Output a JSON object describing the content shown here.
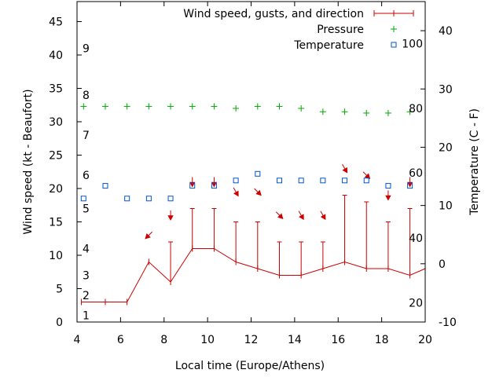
{
  "chart_data": {
    "type": "line",
    "xlabel": "Local time (Europe/Athens)",
    "ylabel_left": "Wind speed (kt - Beaufort)",
    "ylabel_right": "Temperature (C - F)",
    "x_range": [
      4,
      20
    ],
    "y_left_range": [
      0,
      48
    ],
    "y_right_range": [
      -10,
      45
    ],
    "x_ticks": [
      "4",
      "6",
      "8",
      "10",
      "12",
      "14",
      "16",
      "18",
      "20"
    ],
    "y_left_ticks": [
      "0",
      "5",
      "10",
      "15",
      "20",
      "25",
      "30",
      "35",
      "40",
      "45"
    ],
    "y_right_ticks": [
      "-10",
      "0",
      "10",
      "20",
      "30",
      "40"
    ],
    "beaufort_labels": [
      {
        "label": "1",
        "y": 1
      },
      {
        "label": "2",
        "y": 4
      },
      {
        "label": "3",
        "y": 7
      },
      {
        "label": "4",
        "y": 11
      },
      {
        "label": "5",
        "y": 17
      },
      {
        "label": "6",
        "y": 22
      },
      {
        "label": "7",
        "y": 28
      },
      {
        "label": "8",
        "y": 34
      },
      {
        "label": "9",
        "y": 41
      }
    ],
    "fahrenheit_labels": [
      {
        "label": "20",
        "c": -6.7
      },
      {
        "label": "40",
        "c": 4.4
      },
      {
        "label": "60",
        "c": 15.6
      },
      {
        "label": "80",
        "c": 26.7
      },
      {
        "label": "100",
        "c": 37.8
      }
    ],
    "legend": {
      "wind": "Wind speed, gusts, and direction",
      "pressure": "Pressure",
      "temperature": "Temperature"
    },
    "colors": {
      "wind": "#cc0000",
      "pressure": "#00aa00",
      "temperature": "#0055cc"
    },
    "wind": {
      "x": [
        4.2,
        5.3,
        6.3,
        7.3,
        8.3,
        9.3,
        10.3,
        11.3,
        12.3,
        13.3,
        14.3,
        15.3,
        16.3,
        17.3,
        18.3,
        19.3,
        20.0
      ],
      "speed": [
        3,
        3,
        3,
        9,
        6,
        11,
        11,
        9,
        8,
        7,
        7,
        8,
        9,
        8,
        8,
        7,
        8
      ],
      "gust": [
        null,
        null,
        null,
        null,
        12,
        17,
        17,
        15,
        15,
        12,
        12,
        12,
        19,
        18,
        15,
        17,
        null
      ],
      "direction_deg": [
        null,
        null,
        null,
        45,
        90,
        90,
        90,
        120,
        135,
        135,
        120,
        120,
        120,
        135,
        90,
        90,
        null
      ]
    },
    "pressure": {
      "x": [
        4.3,
        5.3,
        6.3,
        7.3,
        8.3,
        9.3,
        10.3,
        11.3,
        12.3,
        13.3,
        14.3,
        15.3,
        16.3,
        17.3,
        18.3,
        19.3
      ],
      "y": [
        32.3,
        32.3,
        32.3,
        32.3,
        32.3,
        32.3,
        32.3,
        32.0,
        32.3,
        32.3,
        32.0,
        31.5,
        31.5,
        31.3,
        31.3,
        31.5
      ]
    },
    "temperature": {
      "x": [
        4.3,
        5.3,
        6.3,
        7.3,
        8.3,
        9.3,
        10.3,
        11.3,
        12.3,
        13.3,
        14.3,
        15.3,
        16.3,
        17.3,
        18.3,
        19.3
      ],
      "y": [
        18.5,
        20.4,
        18.5,
        18.5,
        18.5,
        20.4,
        20.4,
        21.2,
        22.2,
        21.2,
        21.2,
        21.2,
        21.2,
        21.2,
        20.4,
        20.4
      ]
    },
    "arrows_y": [
      null,
      null,
      null,
      13.0,
      16.0,
      21.0,
      21.0,
      19.5,
      19.5,
      16.0,
      16.0,
      16.0,
      23.0,
      22.0,
      19.0,
      21.0,
      null
    ]
  }
}
